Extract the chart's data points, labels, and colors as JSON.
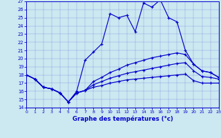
{
  "xlabel": "Graphe des températures (°c)",
  "bg_color": "#cce8f0",
  "line_color": "#0000cc",
  "grid_color": "#99bbcc",
  "xlim": [
    0,
    23
  ],
  "ylim": [
    14,
    27
  ],
  "xticks": [
    0,
    1,
    2,
    3,
    4,
    5,
    6,
    7,
    8,
    9,
    10,
    11,
    12,
    13,
    14,
    15,
    16,
    17,
    18,
    19,
    20,
    21,
    22,
    23
  ],
  "yticks": [
    14,
    15,
    16,
    17,
    18,
    19,
    20,
    21,
    22,
    23,
    24,
    25,
    26,
    27
  ],
  "series": [
    [
      18,
      17.5,
      16.5,
      16.3,
      15.8,
      14.7,
      16.0,
      19.8,
      20.8,
      21.8,
      25.5,
      25.0,
      25.3,
      23.3,
      26.8,
      26.3,
      27.2,
      25.0,
      24.5,
      21.0,
      19.3,
      18.5,
      18.3,
      17.7
    ],
    [
      18,
      17.5,
      16.5,
      16.3,
      15.8,
      14.7,
      15.8,
      16.1,
      17.2,
      17.7,
      18.3,
      18.7,
      19.2,
      19.5,
      19.8,
      20.1,
      20.3,
      20.5,
      20.7,
      20.5,
      19.3,
      18.5,
      18.3,
      17.7
    ],
    [
      18,
      17.5,
      16.5,
      16.3,
      15.8,
      14.7,
      15.8,
      16.1,
      16.5,
      16.7,
      17.0,
      17.2,
      17.4,
      17.5,
      17.6,
      17.7,
      17.8,
      17.9,
      18.0,
      18.1,
      17.3,
      17.0,
      17.0,
      17.0
    ],
    [
      18,
      17.5,
      16.5,
      16.3,
      15.8,
      14.7,
      15.8,
      16.1,
      16.8,
      17.2,
      17.6,
      17.9,
      18.2,
      18.4,
      18.6,
      18.8,
      19.0,
      19.2,
      19.4,
      19.5,
      18.5,
      17.8,
      17.7,
      17.5
    ]
  ]
}
